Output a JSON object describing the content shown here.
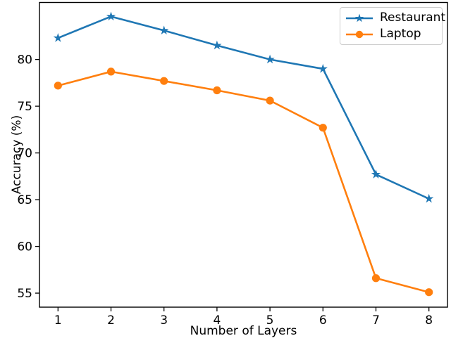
{
  "chart_data": {
    "type": "line",
    "title": "",
    "xlabel": "Number of Layers",
    "ylabel": "Accuracy (%)",
    "x": [
      1,
      2,
      3,
      4,
      5,
      6,
      7,
      8
    ],
    "series": [
      {
        "name": "Restaurant",
        "color": "#1f77b4",
        "marker": "star",
        "values": [
          82.3,
          84.6,
          83.1,
          81.5,
          80.0,
          79.0,
          67.7,
          65.1
        ]
      },
      {
        "name": "Laptop",
        "color": "#ff7f0e",
        "marker": "circle",
        "values": [
          77.2,
          78.7,
          77.7,
          76.7,
          75.6,
          72.7,
          56.6,
          55.1
        ]
      }
    ],
    "xticks": [
      "1",
      "2",
      "3",
      "4",
      "5",
      "6",
      "7",
      "8"
    ],
    "yticks": [
      "55",
      "60",
      "65",
      "70",
      "75",
      "80"
    ],
    "xlim": [
      0.65,
      8.35
    ],
    "ylim": [
      53.5,
      86.1
    ],
    "grid": false,
    "legend_position": "upper-right",
    "axis_color": "#000000",
    "background_color": "#ffffff"
  }
}
